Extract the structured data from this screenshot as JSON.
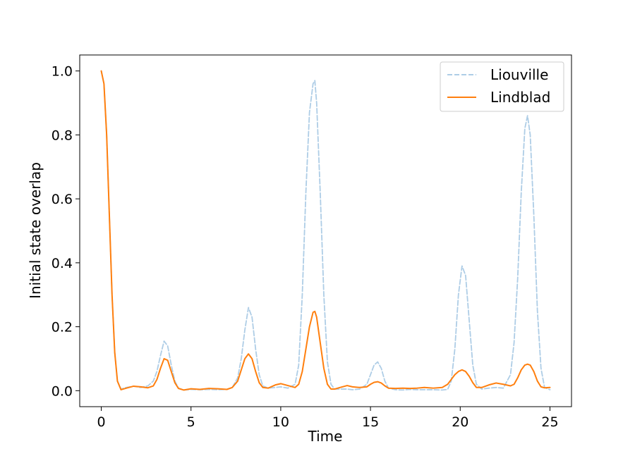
{
  "chart_data": {
    "type": "line",
    "xlabel": "Time",
    "ylabel": "Initial state overlap",
    "xlim": [
      -1.2,
      26.2
    ],
    "ylim": [
      -0.05,
      1.05
    ],
    "xticks": [
      0,
      5,
      10,
      15,
      20,
      25
    ],
    "xtick_labels": [
      "0",
      "5",
      "10",
      "15",
      "20",
      "25"
    ],
    "yticks": [
      0.0,
      0.2,
      0.4,
      0.6,
      0.8,
      1.0
    ],
    "ytick_labels": [
      "0.0",
      "0.2",
      "0.4",
      "0.6",
      "0.8",
      "1.0"
    ],
    "grid": false,
    "legend_position": "top-right",
    "series": [
      {
        "name": "Liouville",
        "color": "#aecde6",
        "dash": "dashed",
        "x": [
          0,
          0.15,
          0.3,
          0.45,
          0.6,
          0.75,
          0.9,
          1.1,
          1.4,
          1.8,
          2.2,
          2.6,
          2.9,
          3.1,
          3.3,
          3.5,
          3.7,
          3.9,
          4.1,
          4.3,
          4.6,
          5.0,
          5.5,
          6.0,
          6.5,
          7.0,
          7.3,
          7.6,
          7.8,
          8.0,
          8.2,
          8.4,
          8.6,
          8.8,
          9.0,
          9.3,
          9.7,
          10.0,
          10.4,
          10.8,
          11.0,
          11.2,
          11.4,
          11.6,
          11.8,
          11.9,
          12.0,
          12.2,
          12.4,
          12.6,
          12.8,
          13.0,
          13.3,
          13.7,
          14.0,
          14.4,
          14.8,
          15.0,
          15.2,
          15.4,
          15.6,
          15.8,
          16.0,
          16.4,
          16.8,
          17.2,
          17.6,
          18.0,
          18.5,
          19.0,
          19.3,
          19.5,
          19.7,
          19.9,
          20.1,
          20.3,
          20.5,
          20.7,
          20.9,
          21.2,
          21.6,
          22.0,
          22.4,
          22.8,
          23.0,
          23.2,
          23.4,
          23.6,
          23.75,
          23.9,
          24.1,
          24.3,
          24.5,
          24.7,
          25.0
        ],
        "values": [
          1.0,
          0.96,
          0.8,
          0.55,
          0.3,
          0.12,
          0.03,
          0.005,
          0.01,
          0.014,
          0.01,
          0.015,
          0.03,
          0.06,
          0.11,
          0.155,
          0.14,
          0.08,
          0.03,
          0.008,
          0.002,
          0.004,
          0.003,
          0.004,
          0.003,
          0.004,
          0.01,
          0.04,
          0.1,
          0.19,
          0.26,
          0.23,
          0.13,
          0.05,
          0.015,
          0.008,
          0.01,
          0.012,
          0.008,
          0.02,
          0.08,
          0.3,
          0.62,
          0.87,
          0.96,
          0.97,
          0.9,
          0.62,
          0.3,
          0.09,
          0.02,
          0.005,
          0.005,
          0.005,
          0.003,
          0.005,
          0.02,
          0.05,
          0.08,
          0.09,
          0.07,
          0.03,
          0.008,
          0.003,
          0.002,
          0.004,
          0.003,
          0.003,
          0.003,
          0.002,
          0.004,
          0.03,
          0.13,
          0.3,
          0.39,
          0.36,
          0.22,
          0.08,
          0.02,
          0.005,
          0.008,
          0.01,
          0.008,
          0.05,
          0.15,
          0.35,
          0.62,
          0.82,
          0.86,
          0.8,
          0.55,
          0.25,
          0.07,
          0.01,
          0.003
        ]
      },
      {
        "name": "Lindblad",
        "color": "#ff7f0e",
        "dash": "solid",
        "x": [
          0,
          0.15,
          0.3,
          0.45,
          0.6,
          0.75,
          0.9,
          1.1,
          1.4,
          1.8,
          2.2,
          2.6,
          2.9,
          3.1,
          3.3,
          3.5,
          3.7,
          3.9,
          4.1,
          4.3,
          4.6,
          5.0,
          5.5,
          6.0,
          6.5,
          7.0,
          7.3,
          7.6,
          7.8,
          8.0,
          8.2,
          8.4,
          8.6,
          8.8,
          9.0,
          9.3,
          9.7,
          10.0,
          10.4,
          10.8,
          11.0,
          11.2,
          11.4,
          11.6,
          11.8,
          11.9,
          12.0,
          12.2,
          12.4,
          12.6,
          12.8,
          13.0,
          13.3,
          13.7,
          14.0,
          14.4,
          14.8,
          15.0,
          15.2,
          15.4,
          15.6,
          15.8,
          16.0,
          16.4,
          16.8,
          17.2,
          17.6,
          18.0,
          18.5,
          19.0,
          19.3,
          19.5,
          19.7,
          19.9,
          20.1,
          20.3,
          20.5,
          20.7,
          20.9,
          21.2,
          21.6,
          22.0,
          22.4,
          22.8,
          23.0,
          23.2,
          23.4,
          23.6,
          23.75,
          23.9,
          24.1,
          24.3,
          24.5,
          24.7,
          25.0
        ],
        "values": [
          1.0,
          0.96,
          0.8,
          0.55,
          0.3,
          0.12,
          0.03,
          0.003,
          0.008,
          0.014,
          0.012,
          0.009,
          0.015,
          0.035,
          0.07,
          0.1,
          0.095,
          0.06,
          0.025,
          0.007,
          0.002,
          0.006,
          0.004,
          0.007,
          0.006,
          0.004,
          0.01,
          0.03,
          0.065,
          0.1,
          0.115,
          0.1,
          0.06,
          0.025,
          0.01,
          0.008,
          0.018,
          0.022,
          0.016,
          0.01,
          0.02,
          0.06,
          0.13,
          0.2,
          0.245,
          0.248,
          0.23,
          0.15,
          0.07,
          0.02,
          0.005,
          0.005,
          0.01,
          0.016,
          0.012,
          0.01,
          0.012,
          0.02,
          0.026,
          0.028,
          0.024,
          0.015,
          0.008,
          0.007,
          0.008,
          0.007,
          0.008,
          0.01,
          0.008,
          0.01,
          0.02,
          0.035,
          0.05,
          0.06,
          0.065,
          0.06,
          0.045,
          0.025,
          0.01,
          0.01,
          0.018,
          0.024,
          0.02,
          0.015,
          0.02,
          0.04,
          0.065,
          0.08,
          0.083,
          0.08,
          0.06,
          0.03,
          0.012,
          0.009,
          0.01
        ]
      }
    ]
  }
}
